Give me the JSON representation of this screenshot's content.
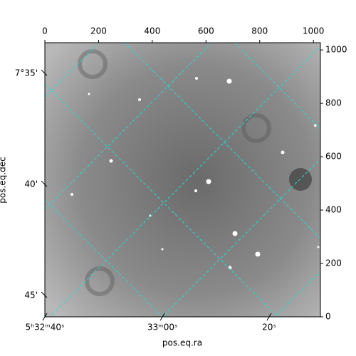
{
  "chart_data": {
    "type": "image",
    "xlabel": "pos.eq.ra",
    "ylabel": "pos.eq.dec",
    "xlim": [
      0,
      1026
    ],
    "ylim": [
      0,
      1027
    ],
    "xticks": [
      0,
      200,
      400,
      600,
      800,
      1000
    ],
    "yticks": [
      0,
      200,
      400,
      600,
      800,
      1000
    ],
    "ra_ticks": [
      {
        "value": 0,
        "label": "5ʰ32ᵐ40ˢ"
      },
      {
        "value": 438,
        "label": "33ᵐ00ˢ"
      },
      {
        "value": 835,
        "label": "20ˢ"
      }
    ],
    "dec_ticks": [
      {
        "value": 912,
        "label": "7°35'"
      },
      {
        "value": 496,
        "label": "40'"
      },
      {
        "value": 80,
        "label": "45'"
      }
    ],
    "grid_color": "#22dddd"
  }
}
